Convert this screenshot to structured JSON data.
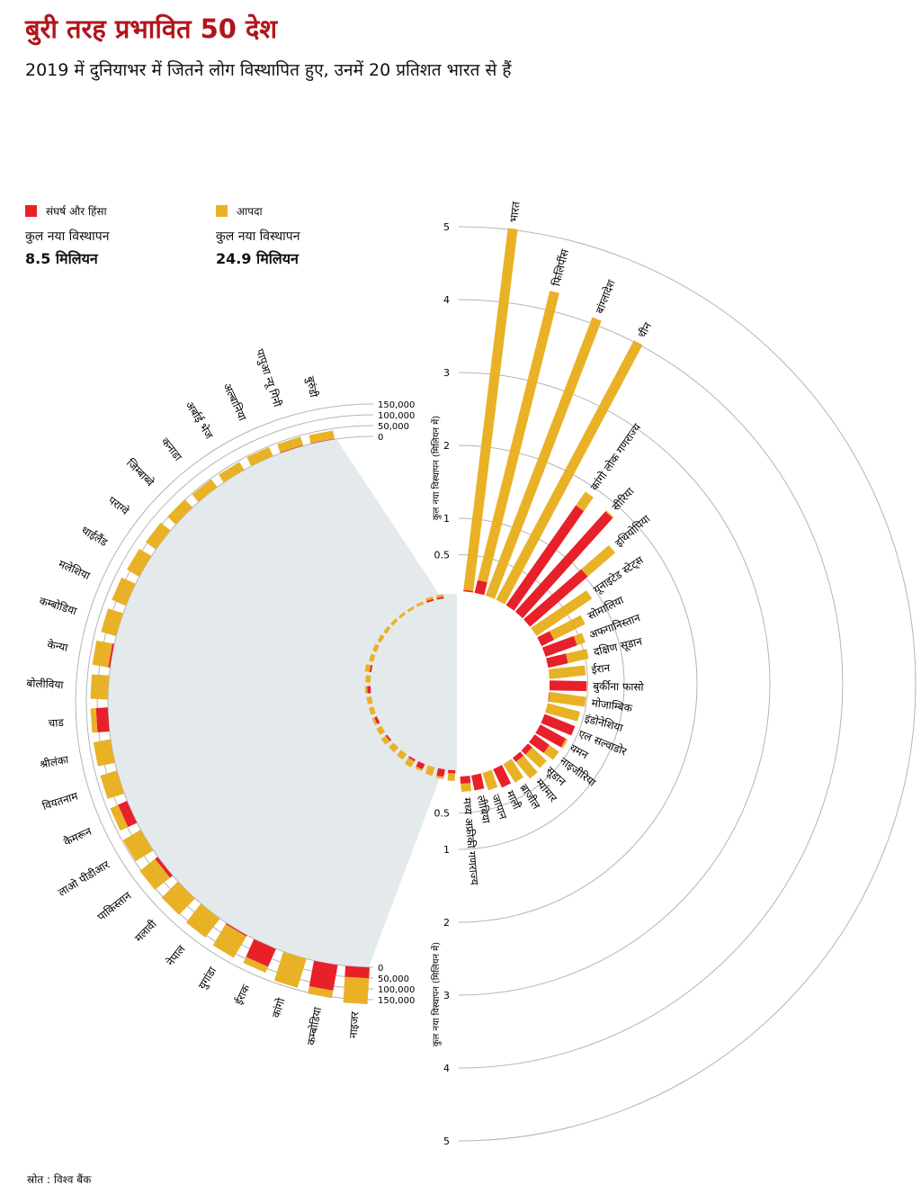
{
  "header": {
    "title": "बुरी तरह प्रभावित 50 देश",
    "subtitle": "2019 में दुनियाभर में जितने लोग विस्थापित हुए, उनमें 20 प्रतिशत भारत से हैं"
  },
  "legend": {
    "conflict": {
      "label": "संघर्ष और हिंसा",
      "total_label": "कुल नया विस्थापन",
      "total_value": "8.5 मिलियन",
      "color": "#e8202a"
    },
    "disaster": {
      "label": "आपदा",
      "total_label": "कुल नया विस्थापन",
      "total_value": "24.9 मिलियन",
      "color": "#e9b125"
    }
  },
  "footer": {
    "source": "स्रोत : विश्व बैंक"
  },
  "chart_data": {
    "type": "radial-bar",
    "title": "बुरी तरह प्रभावित 50 देश",
    "series_names": [
      "संघर्ष और हिंसा",
      "आपदा"
    ],
    "major": {
      "axis_title": "कुल नया विस्थापन (मिलियन में)",
      "unit": "million",
      "ticks": [
        "0.5",
        "1",
        "2",
        "3",
        "4",
        "5"
      ],
      "tick_values": [
        0.5,
        1,
        2,
        3,
        4,
        5
      ],
      "countries": [
        {
          "name": "भारत",
          "conflict": 0.02,
          "disaster": 5.0
        },
        {
          "name": "फिलिपींस",
          "conflict": 0.18,
          "disaster": 4.09
        },
        {
          "name": "बांग्लादेश",
          "conflict": 0.0,
          "disaster": 4.09
        },
        {
          "name": "चीन",
          "conflict": 0.0,
          "disaster": 4.03
        },
        {
          "name": "कांगो लोक गणराज्य",
          "conflict": 1.67,
          "disaster": 0.23
        },
        {
          "name": "सीरिया",
          "conflict": 1.85,
          "disaster": 0.02
        },
        {
          "name": "इथियोपिया",
          "conflict": 1.05,
          "disaster": 0.5
        },
        {
          "name": "यूनाइटेड स्टेट्स",
          "conflict": 0.0,
          "disaster": 0.92
        },
        {
          "name": "सोमालिया",
          "conflict": 0.19,
          "disaster": 0.48
        },
        {
          "name": "अफगानिस्तान",
          "conflict": 0.46,
          "disaster": 0.12
        },
        {
          "name": "दक्षिण सूडान",
          "conflict": 0.28,
          "disaster": 0.29
        },
        {
          "name": "ईरान",
          "conflict": 0.0,
          "disaster": 0.5
        },
        {
          "name": "बुर्कीना फासो",
          "conflict": 0.51,
          "disaster": 0.0
        },
        {
          "name": "मोजाम्बिक",
          "conflict": 0.01,
          "disaster": 0.5
        },
        {
          "name": "इंडोनेशिया",
          "conflict": 0.0,
          "disaster": 0.46
        },
        {
          "name": "एल सल्वाडोर",
          "conflict": 0.45,
          "disaster": 0.0
        },
        {
          "name": "यमन",
          "conflict": 0.4,
          "disaster": 0.03
        },
        {
          "name": "नाइजीरिया",
          "conflict": 0.25,
          "disaster": 0.16
        },
        {
          "name": "सूडान",
          "conflict": 0.08,
          "disaster": 0.27
        },
        {
          "name": "म्यांमार",
          "conflict": 0.07,
          "disaster": 0.3
        },
        {
          "name": "ब्राजील",
          "conflict": 0.0,
          "disaster": 0.3
        },
        {
          "name": "माली",
          "conflict": 0.28,
          "disaster": 0.0
        },
        {
          "name": "जापान",
          "conflict": 0.0,
          "disaster": 0.25
        },
        {
          "name": "लीबिया",
          "conflict": 0.21,
          "disaster": 0.0
        },
        {
          "name": "मध्य अफ्रीकी गणराज्य",
          "conflict": 0.1,
          "disaster": 0.11
        }
      ]
    },
    "minor": {
      "unit": "people",
      "ticks": [
        "0",
        "50,000",
        "100,000",
        "150,000"
      ],
      "tick_values": [
        0,
        50000,
        100000,
        150000
      ],
      "countries": [
        {
          "name": "बुरुंडी",
          "conflict": 2000,
          "disaster": 38000
        },
        {
          "name": "पापुआ न्यू गिनी",
          "conflict": 3000,
          "disaster": 40000
        },
        {
          "name": "अल्बानिया",
          "conflict": 0,
          "disaster": 45000
        },
        {
          "name": "अर्बाई भेज",
          "conflict": 0,
          "disaster": 42000
        },
        {
          "name": "कनाडा",
          "conflict": 0,
          "disaster": 45000
        },
        {
          "name": "जिम्बाब्वे",
          "conflict": 0,
          "disaster": 52000
        },
        {
          "name": "पराग्वे",
          "conflict": 0,
          "disaster": 58000
        },
        {
          "name": "थाईलैंड",
          "conflict": 0,
          "disaster": 65000
        },
        {
          "name": "मलेशिया",
          "conflict": 0,
          "disaster": 70000
        },
        {
          "name": "कम्बोडिया",
          "conflict": 0,
          "disaster": 72000
        },
        {
          "name": "केन्या",
          "conflict": 8000,
          "disaster": 75000
        },
        {
          "name": "बोलीविया",
          "conflict": 0,
          "disaster": 80000
        },
        {
          "name": "चाड",
          "conflict": 55000,
          "disaster": 25000
        },
        {
          "name": "श्रीलंका",
          "conflict": 0,
          "disaster": 80000
        },
        {
          "name": "वियतनाम",
          "conflict": 0,
          "disaster": 80000
        },
        {
          "name": "कैमरून",
          "conflict": 45000,
          "disaster": 40000
        },
        {
          "name": "लाओ पीडीआर",
          "conflict": 0,
          "disaster": 95000
        },
        {
          "name": "पाकिस्तान",
          "conflict": 15000,
          "disaster": 90000
        },
        {
          "name": "मलावी",
          "conflict": 0,
          "disaster": 105000
        },
        {
          "name": "नेपाल",
          "conflict": 0,
          "disaster": 110000
        },
        {
          "name": "युगांडा",
          "conflict": 5000,
          "disaster": 115000
        },
        {
          "name": "ईराक",
          "conflict": 90000,
          "disaster": 30000
        },
        {
          "name": "कांगो",
          "conflict": 0,
          "disaster": 140000
        },
        {
          "name": "कम्बोडिया",
          "conflict": 120000,
          "disaster": 35000
        },
        {
          "name": "नाइजर",
          "conflict": 50000,
          "disaster": 120000
        }
      ]
    }
  }
}
